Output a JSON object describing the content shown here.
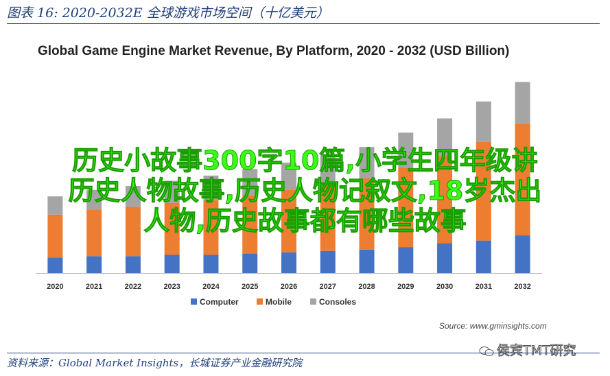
{
  "figure_title": "图表 16:  2020-2032E 全球游戏市场空间（十亿美元）",
  "chart_data": {
    "type": "bar",
    "stacked": true,
    "title": "Global Game Engine Market Revenue, By Platform, 2020 - 2032 (USD Billion)",
    "categories": [
      "2020",
      "2021",
      "2022",
      "2023",
      "2024",
      "2025",
      "2026",
      "2027",
      "2028",
      "2029",
      "2030",
      "2031",
      "2032"
    ],
    "series": [
      {
        "name": "Computer",
        "color": "#4472c4",
        "values": [
          0.6,
          0.65,
          0.65,
          0.7,
          0.7,
          0.75,
          0.8,
          0.85,
          0.9,
          1.0,
          1.15,
          1.25,
          1.45
        ]
      },
      {
        "name": "Mobile",
        "color": "#ed7d31",
        "values": [
          1.65,
          1.8,
          1.9,
          2.0,
          2.1,
          2.25,
          2.4,
          2.55,
          2.75,
          3.05,
          3.35,
          3.8,
          4.3
        ]
      },
      {
        "name": "Consoles",
        "color": "#a5a5a5",
        "values": [
          0.7,
          0.75,
          0.8,
          0.85,
          0.95,
          1.0,
          1.05,
          1.15,
          1.2,
          1.35,
          1.45,
          1.55,
          1.6
        ]
      }
    ],
    "legend": "bottom",
    "grid": false,
    "ylim": [
      0,
      7.6
    ]
  },
  "source_note": "Source: www.gminsights.com",
  "overlay_lines": [
    "历史小故事300字10篇,小学生四年级讲",
    "历史人物故事,历史人物记叙文,18岁杰出",
    "人物,历史故事都有哪些故事"
  ],
  "watermark": "侯宾TMT研究",
  "footer": "资料来源：Global Market Insights，长城证券产业金融研究院"
}
